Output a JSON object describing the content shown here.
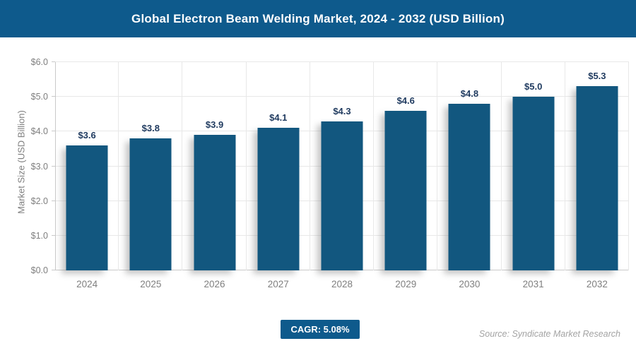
{
  "header": {
    "title": "Global Electron Beam Welding Market, 2024 - 2032 (USD Billion)",
    "bg_color": "#0e5a8c",
    "text_color": "#ffffff"
  },
  "chart_data": {
    "type": "bar",
    "title": "Global Electron Beam Welding Market, 2024 - 2032 (USD Billion)",
    "categories": [
      "2024",
      "2025",
      "2026",
      "2027",
      "2028",
      "2029",
      "2030",
      "2031",
      "2032"
    ],
    "values": [
      3.6,
      3.8,
      3.9,
      4.1,
      4.3,
      4.6,
      4.8,
      5.0,
      5.3
    ],
    "value_labels": [
      "$3.6",
      "$3.8",
      "$3.9",
      "$4.1",
      "$4.3",
      "$4.6",
      "$4.8",
      "$5.0",
      "$5.3"
    ],
    "xlabel": "",
    "ylabel": "Market Size (USD Billion)",
    "ylim": [
      0,
      6
    ],
    "ytick_step": 1,
    "ytick_labels": [
      "$0.0",
      "$1.0",
      "$2.0",
      "$3.0",
      "$4.0",
      "$5.0",
      "$6.0"
    ],
    "grid": true,
    "legend": "none",
    "bar_color": "#12577f",
    "value_label_color": "#1f3a5f",
    "axis_label_color": "#7f7f7f"
  },
  "footer": {
    "cagr_label": "CAGR: 5.08%",
    "cagr_bg_color": "#0e5a8c",
    "source": "Source: Syndicate Market Research"
  }
}
